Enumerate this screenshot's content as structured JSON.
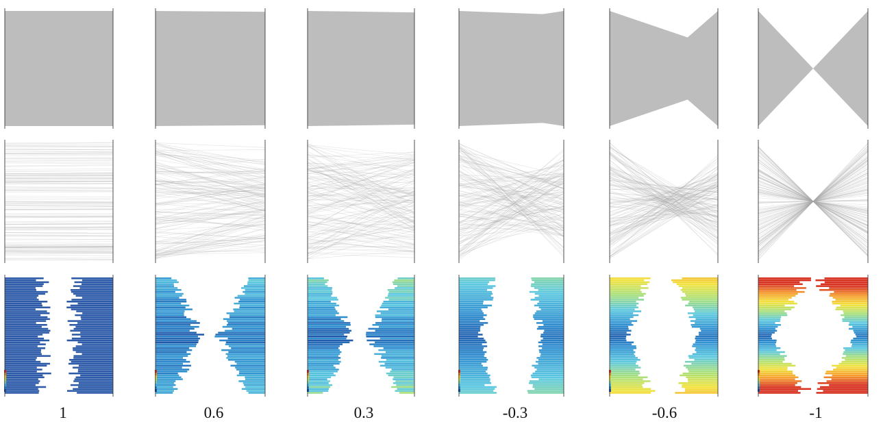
{
  "columns": [
    {
      "label": "1",
      "r": 1.0
    },
    {
      "label": "0.6",
      "r": 0.6
    },
    {
      "label": "0.3",
      "r": 0.3
    },
    {
      "label": "-0.3",
      "r": -0.3
    },
    {
      "label": "-0.6",
      "r": -0.6
    },
    {
      "label": "-1",
      "r": -1.0
    }
  ],
  "rows": [
    {
      "style": "solid-gray"
    },
    {
      "style": "transparent-gray"
    },
    {
      "style": "colored-bars"
    }
  ],
  "colors": {
    "solid_gray": "#bdbdbd",
    "light_gray": "#a8a8a8",
    "axis": "#222222",
    "bar_blue": "#2c5aa8",
    "colormap": [
      "#1f4fa3",
      "#2f8fd0",
      "#5cc8e0",
      "#a8e07a",
      "#f3e23c",
      "#f59a2c",
      "#d7301f"
    ]
  }
}
